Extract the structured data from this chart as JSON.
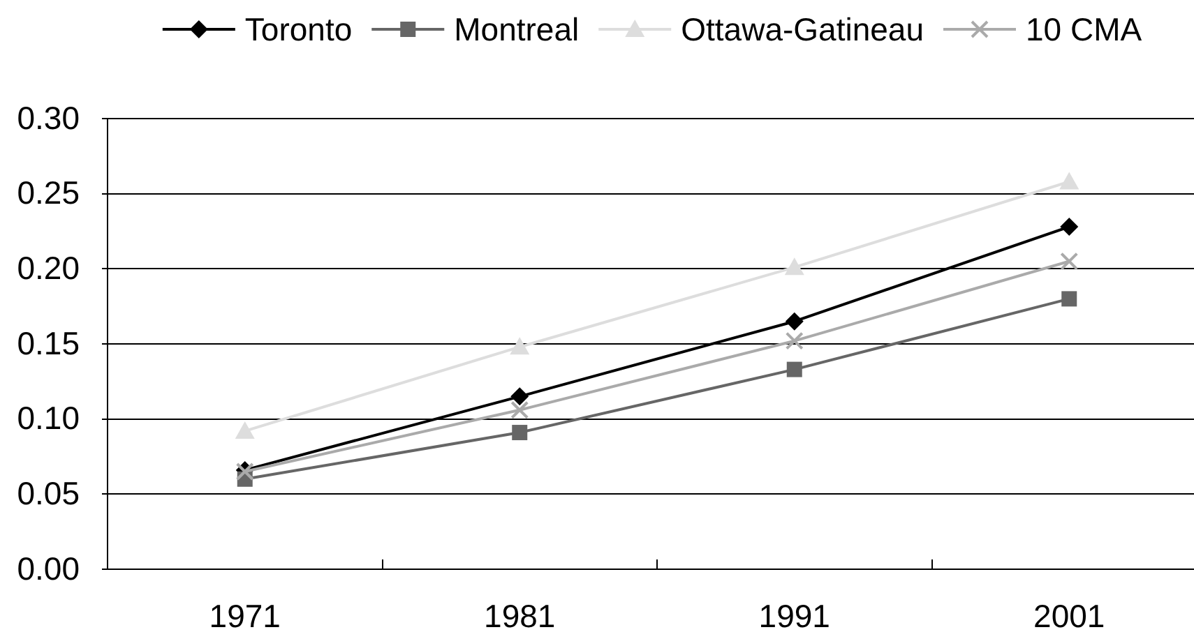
{
  "chart_data": {
    "type": "line",
    "categories": [
      "1971",
      "1981",
      "1991",
      "2001"
    ],
    "series": [
      {
        "name": "Toronto",
        "color": "#000000",
        "marker": "diamond",
        "values": [
          0.066,
          0.115,
          0.165,
          0.228
        ]
      },
      {
        "name": "Montreal",
        "color": "#666666",
        "marker": "square",
        "values": [
          0.06,
          0.091,
          0.133,
          0.18
        ]
      },
      {
        "name": "Ottawa-Gatineau",
        "color": "#dddddd",
        "marker": "triangle",
        "values": [
          0.092,
          0.148,
          0.201,
          0.258
        ]
      },
      {
        "name": "10 CMA",
        "color": "#aaaaaa",
        "marker": "cross",
        "values": [
          0.065,
          0.106,
          0.152,
          0.205
        ]
      }
    ],
    "ylim": [
      0,
      0.3
    ],
    "yticks": [
      {
        "value": 0,
        "label": "0.00"
      },
      {
        "value": 0.05,
        "label": "0.05"
      },
      {
        "value": 0.1,
        "label": "0.10"
      },
      {
        "value": 0.15,
        "label": "0.15"
      },
      {
        "value": 0.2,
        "label": "0.20"
      },
      {
        "value": 0.25,
        "label": "0.25"
      },
      {
        "value": 0.3,
        "label": "0.30"
      }
    ],
    "grid": "y",
    "legend": "top",
    "line_style": "solid"
  }
}
